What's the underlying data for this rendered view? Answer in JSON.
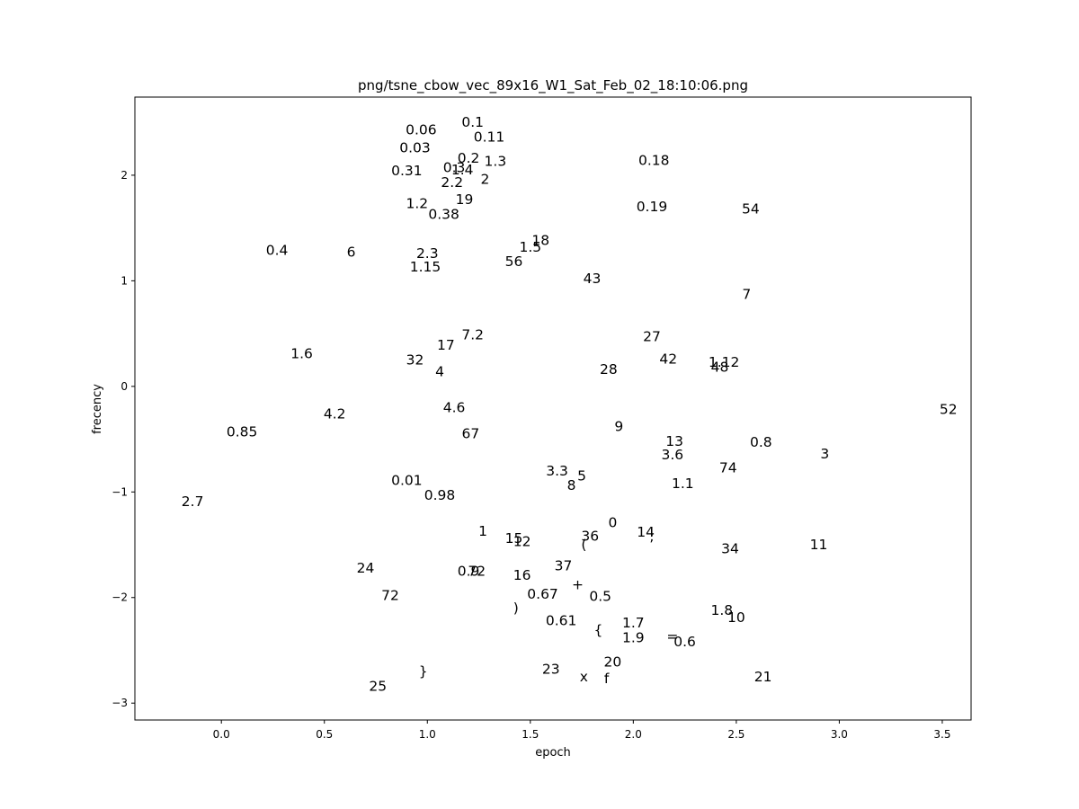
{
  "chart_data": {
    "type": "scatter",
    "title": "png/tsne_cbow_vec_89x16_W1_Sat_Feb_02_18:10:06.png",
    "xlabel": "epoch",
    "ylabel": "frecency",
    "xlim": [
      -0.42,
      3.64
    ],
    "ylim": [
      -3.16,
      2.74
    ],
    "xticks": [
      0.0,
      0.5,
      1.0,
      1.5,
      2.0,
      2.5,
      3.0,
      3.5
    ],
    "xtick_labels": [
      "0.0",
      "0.5",
      "1.0",
      "1.5",
      "2.0",
      "2.5",
      "3.0",
      "3.5"
    ],
    "yticks": [
      -3,
      -2,
      -1,
      0,
      1,
      2
    ],
    "ytick_labels": [
      "−3",
      "−2",
      "−1",
      "0",
      "1",
      "2"
    ],
    "grid": false,
    "points": [
      {
        "label": "0.1",
        "x": 1.22,
        "y": 2.5
      },
      {
        "label": "0.06",
        "x": 0.97,
        "y": 2.43
      },
      {
        "label": "0.11",
        "x": 1.3,
        "y": 2.36
      },
      {
        "label": "0.03",
        "x": 0.94,
        "y": 2.26
      },
      {
        "label": "0.2",
        "x": 1.2,
        "y": 2.16
      },
      {
        "label": "1.3",
        "x": 1.33,
        "y": 2.13
      },
      {
        "label": "0.18",
        "x": 2.1,
        "y": 2.14
      },
      {
        "label": "0.31",
        "x": 0.9,
        "y": 2.04
      },
      {
        "label": "0.3",
        "x": 1.13,
        "y": 2.07
      },
      {
        "label": "1.4",
        "x": 1.17,
        "y": 2.05
      },
      {
        "label": "2.2",
        "x": 1.12,
        "y": 1.93
      },
      {
        "label": "2",
        "x": 1.28,
        "y": 1.96
      },
      {
        "label": "19",
        "x": 1.18,
        "y": 1.77
      },
      {
        "label": "1.2",
        "x": 0.95,
        "y": 1.73
      },
      {
        "label": "0.19",
        "x": 2.09,
        "y": 1.7
      },
      {
        "label": "54",
        "x": 2.57,
        "y": 1.68
      },
      {
        "label": "0.38",
        "x": 1.08,
        "y": 1.63
      },
      {
        "label": "18",
        "x": 1.55,
        "y": 1.38
      },
      {
        "label": "1.5",
        "x": 1.5,
        "y": 1.32
      },
      {
        "label": "0.4",
        "x": 0.27,
        "y": 1.29
      },
      {
        "label": "6",
        "x": 0.63,
        "y": 1.27
      },
      {
        "label": "2.3",
        "x": 1.0,
        "y": 1.26
      },
      {
        "label": "56",
        "x": 1.42,
        "y": 1.18
      },
      {
        "label": "1.15",
        "x": 0.99,
        "y": 1.13
      },
      {
        "label": "43",
        "x": 1.8,
        "y": 1.02
      },
      {
        "label": "7",
        "x": 2.55,
        "y": 0.87
      },
      {
        "label": "7.2",
        "x": 1.22,
        "y": 0.49
      },
      {
        "label": "27",
        "x": 2.09,
        "y": 0.47
      },
      {
        "label": "17",
        "x": 1.09,
        "y": 0.39
      },
      {
        "label": "1.6",
        "x": 0.39,
        "y": 0.31
      },
      {
        "label": "42",
        "x": 2.17,
        "y": 0.26
      },
      {
        "label": "32",
        "x": 0.94,
        "y": 0.25
      },
      {
        "label": "1.12",
        "x": 2.44,
        "y": 0.23
      },
      {
        "label": "48",
        "x": 2.42,
        "y": 0.18
      },
      {
        "label": "28",
        "x": 1.88,
        "y": 0.16
      },
      {
        "label": "4",
        "x": 1.06,
        "y": 0.14
      },
      {
        "label": "4.6",
        "x": 1.13,
        "y": -0.2
      },
      {
        "label": "52",
        "x": 3.53,
        "y": -0.22
      },
      {
        "label": "4.2",
        "x": 0.55,
        "y": -0.26
      },
      {
        "label": "9",
        "x": 1.93,
        "y": -0.38
      },
      {
        "label": "0.85",
        "x": 0.1,
        "y": -0.43
      },
      {
        "label": "67",
        "x": 1.21,
        "y": -0.45
      },
      {
        "label": "13",
        "x": 2.2,
        "y": -0.52
      },
      {
        "label": "0.8",
        "x": 2.62,
        "y": -0.53
      },
      {
        "label": "3.6",
        "x": 2.19,
        "y": -0.65
      },
      {
        "label": "3",
        "x": 2.93,
        "y": -0.64
      },
      {
        "label": "74",
        "x": 2.46,
        "y": -0.77
      },
      {
        "label": "3.3",
        "x": 1.63,
        "y": -0.8
      },
      {
        "label": "5",
        "x": 1.75,
        "y": -0.85
      },
      {
        "label": "0.01",
        "x": 0.9,
        "y": -0.89
      },
      {
        "label": "1.1",
        "x": 2.24,
        "y": -0.92
      },
      {
        "label": "8",
        "x": 1.7,
        "y": -0.94
      },
      {
        "label": "0.98",
        "x": 1.06,
        "y": -1.03
      },
      {
        "label": "2.7",
        "x": -0.14,
        "y": -1.09
      },
      {
        "label": "0",
        "x": 1.9,
        "y": -1.29
      },
      {
        "label": "1",
        "x": 1.27,
        "y": -1.37
      },
      {
        "label": "14",
        "x": 2.06,
        "y": -1.38
      },
      {
        "label": "36",
        "x": 1.79,
        "y": -1.42
      },
      {
        "label": ";",
        "x": 2.09,
        "y": -1.42
      },
      {
        "label": "15",
        "x": 1.42,
        "y": -1.44
      },
      {
        "label": "12",
        "x": 1.46,
        "y": -1.47
      },
      {
        "label": "(",
        "x": 1.76,
        "y": -1.5
      },
      {
        "label": "11",
        "x": 2.9,
        "y": -1.5
      },
      {
        "label": "34",
        "x": 2.47,
        "y": -1.54
      },
      {
        "label": "37",
        "x": 1.66,
        "y": -1.7
      },
      {
        "label": "24",
        "x": 0.7,
        "y": -1.72
      },
      {
        "label": "0.9",
        "x": 1.2,
        "y": -1.75
      },
      {
        "label": "72",
        "x": 1.24,
        "y": -1.75
      },
      {
        "label": "16",
        "x": 1.46,
        "y": -1.79
      },
      {
        "label": "+",
        "x": 1.73,
        "y": -1.88
      },
      {
        "label": "0.67",
        "x": 1.56,
        "y": -1.97
      },
      {
        "label": "0.5",
        "x": 1.84,
        "y": -1.99
      },
      {
        "label": "72",
        "x": 0.82,
        "y": -1.98
      },
      {
        "label": ")",
        "x": 1.43,
        "y": -2.1
      },
      {
        "label": "1.8",
        "x": 2.43,
        "y": -2.12
      },
      {
        "label": "10",
        "x": 2.5,
        "y": -2.19
      },
      {
        "label": "0.61",
        "x": 1.65,
        "y": -2.22
      },
      {
        "label": "1.7",
        "x": 2.0,
        "y": -2.24
      },
      {
        "label": "{",
        "x": 1.83,
        "y": -2.31
      },
      {
        "label": "1.9",
        "x": 2.0,
        "y": -2.38
      },
      {
        "label": "=",
        "x": 2.19,
        "y": -2.37
      },
      {
        "label": "0.6",
        "x": 2.25,
        "y": -2.42
      },
      {
        "label": "20",
        "x": 1.9,
        "y": -2.61
      },
      {
        "label": "23",
        "x": 1.6,
        "y": -2.68
      },
      {
        "label": "}",
        "x": 0.98,
        "y": -2.7
      },
      {
        "label": "21",
        "x": 2.63,
        "y": -2.75
      },
      {
        "label": "x",
        "x": 1.76,
        "y": -2.75
      },
      {
        "label": "f",
        "x": 1.87,
        "y": -2.77
      },
      {
        "label": "25",
        "x": 0.76,
        "y": -2.84
      }
    ]
  }
}
